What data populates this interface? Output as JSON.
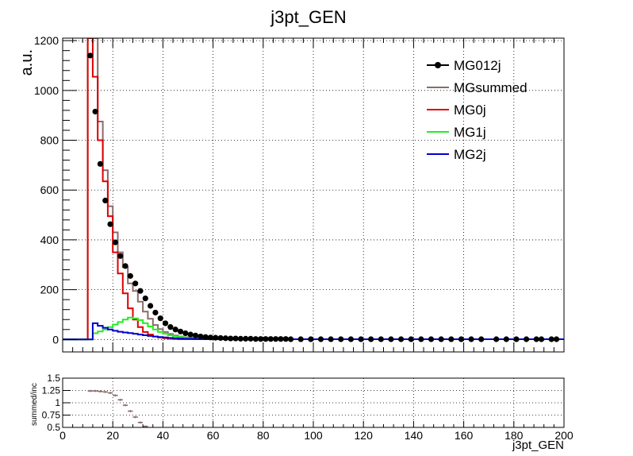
{
  "chart_data": [
    {
      "type": "line",
      "title": "j3pt_GEN",
      "ylabel": "a.u.",
      "xlabel": "",
      "xlim": [
        0,
        200
      ],
      "ylim": [
        -50,
        1210
      ],
      "x_ticks": [
        "0",
        "20",
        "40",
        "60",
        "80",
        "100",
        "120",
        "140",
        "160",
        "180",
        "200"
      ],
      "y_ticks": [
        "0",
        "200",
        "400",
        "600",
        "800",
        "1000",
        "1200"
      ],
      "grid": true,
      "legend_position": "top-right",
      "bin_width": 2,
      "series": [
        {
          "name": "MG012j",
          "style": "markers",
          "color": "#000000",
          "x": [
            11,
            13,
            15,
            17,
            19,
            21,
            23,
            25,
            27,
            29,
            31,
            33,
            35,
            37,
            39,
            41,
            43,
            45,
            47,
            49,
            51,
            53,
            55,
            57,
            59,
            61,
            63,
            65,
            67,
            69,
            71,
            73,
            75,
            77,
            79,
            81,
            83,
            85,
            87,
            89,
            91,
            95,
            99,
            103,
            107,
            111,
            115,
            119,
            123,
            127,
            131,
            135,
            139,
            143,
            147,
            151,
            155,
            159,
            163,
            167,
            173,
            177,
            181,
            185,
            189,
            191,
            195,
            197
          ],
          "y": [
            1140,
            915,
            705,
            558,
            463,
            390,
            335,
            295,
            255,
            225,
            195,
            165,
            135,
            108,
            85,
            65,
            50,
            40,
            32,
            25,
            20,
            16,
            12,
            10,
            8,
            7,
            6,
            5,
            4,
            4,
            3,
            3,
            3,
            2,
            2,
            2,
            2,
            2,
            2,
            2,
            1,
            1,
            1,
            1,
            1,
            1,
            1,
            1,
            1,
            1,
            1,
            1,
            1,
            1,
            1,
            1,
            1,
            1,
            1,
            1,
            1,
            1,
            1,
            1,
            1,
            1,
            1,
            1
          ]
        },
        {
          "name": "MGsummed",
          "style": "step",
          "color": "#8b6b6b",
          "edges": [
            0,
            10,
            12,
            14,
            16,
            18,
            20,
            22,
            24,
            26,
            28,
            30,
            32,
            34,
            36,
            38,
            40,
            42,
            44,
            46,
            48,
            50,
            52,
            54,
            56,
            58,
            60,
            62,
            64,
            66,
            68,
            70,
            200
          ],
          "y": [
            0,
            1210,
            1210,
            875,
            680,
            535,
            430,
            350,
            290,
            225,
            195,
            152,
            112,
            83,
            58,
            42,
            30,
            22,
            16,
            12,
            9,
            7,
            5,
            4,
            3,
            3,
            2,
            2,
            2,
            1,
            1,
            1
          ]
        },
        {
          "name": "MG0j",
          "style": "step",
          "color": "#dd0000",
          "edges": [
            0,
            10,
            12,
            14,
            16,
            18,
            20,
            22,
            24,
            26,
            28,
            30,
            32,
            34,
            36,
            38,
            40,
            42,
            44,
            46,
            200
          ],
          "y": [
            0,
            1210,
            1055,
            800,
            635,
            495,
            350,
            265,
            185,
            125,
            80,
            50,
            30,
            20,
            12,
            8,
            5,
            3,
            2,
            1
          ]
        },
        {
          "name": "MG1j",
          "style": "step",
          "color": "#22ee22",
          "edges": [
            0,
            10,
            12,
            14,
            16,
            18,
            20,
            22,
            24,
            26,
            28,
            30,
            32,
            34,
            36,
            38,
            40,
            42,
            44,
            46,
            48,
            50,
            52,
            54,
            56,
            58,
            60,
            62,
            64,
            66,
            68,
            200
          ],
          "y": [
            0,
            0,
            25,
            32,
            40,
            50,
            60,
            70,
            80,
            88,
            85,
            78,
            65,
            52,
            40,
            30,
            23,
            17,
            13,
            10,
            7,
            5,
            4,
            3,
            3,
            2,
            2,
            1,
            1,
            1,
            1
          ]
        },
        {
          "name": "MG2j",
          "style": "step",
          "color": "#0000cc",
          "edges": [
            0,
            10,
            12,
            14,
            16,
            18,
            20,
            22,
            24,
            26,
            28,
            30,
            32,
            34,
            36,
            38,
            40,
            42,
            44,
            46,
            48,
            50,
            52,
            54,
            56,
            58,
            60,
            62,
            64,
            200
          ],
          "y": [
            0,
            0,
            65,
            55,
            47,
            40,
            35,
            31,
            28,
            26,
            23,
            20,
            17,
            14,
            12,
            10,
            8,
            6,
            5,
            4,
            3,
            3,
            2,
            2,
            1,
            1,
            1,
            1,
            1
          ]
        }
      ]
    },
    {
      "type": "scatter",
      "title": "",
      "xlabel": "j3pt_GEN",
      "ylabel": "summed/inc",
      "xlim": [
        0,
        200
      ],
      "ylim": [
        0.5,
        1.5
      ],
      "x_ticks": [
        "0",
        "20",
        "40",
        "60",
        "80",
        "100",
        "120",
        "140",
        "160",
        "180",
        "200"
      ],
      "y_ticks": [
        "0.5",
        "0.75",
        "1",
        "1.25",
        "1.5"
      ],
      "grid": true,
      "series": [
        {
          "style": "markers",
          "color": "#8b6b6b",
          "x": [
            11,
            13,
            15,
            17,
            19,
            21,
            23,
            25,
            27,
            29,
            31,
            33
          ],
          "y": [
            1.24,
            1.24,
            1.23,
            1.22,
            1.2,
            1.15,
            1.06,
            0.95,
            0.83,
            0.71,
            0.6,
            0.52
          ]
        }
      ]
    }
  ]
}
